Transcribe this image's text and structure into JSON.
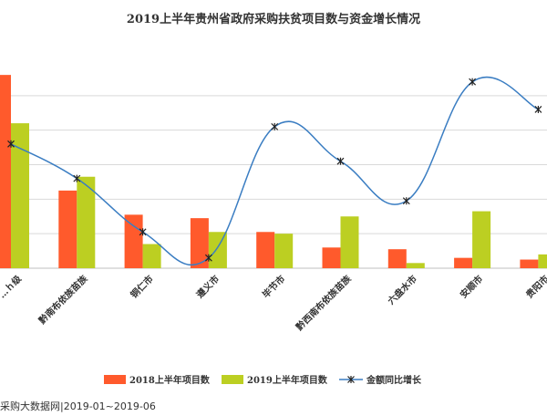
{
  "chart_data": {
    "type": "bar",
    "title": "2019上半年贵州省政府采购扶贫项目数与资金增长情况",
    "categories": [
      "贵阳市本级",
      "黔南布依族苗族",
      "铜仁市",
      "遵义市",
      "毕节市",
      "黔西南布依族苗族",
      "六盘水市",
      "安顺市",
      "贵阳市"
    ],
    "x_tick_labels": [
      "…ｈ级",
      "黔南布依族苗族",
      "铜仁市",
      "遵义市",
      "毕节市",
      "黔西南布依族苗族",
      "六盘水市",
      "安顺市",
      "贵阳市"
    ],
    "series": [
      {
        "name": "2018上半年项目数",
        "type": "bar",
        "color": "#FF5A2C",
        "values": [
          56,
          22.5,
          15.5,
          14.5,
          10.5,
          6,
          5.5,
          3,
          2.5
        ]
      },
      {
        "name": "2019上半年项目数",
        "type": "bar",
        "color": "#BCCF22",
        "values": [
          42,
          26.5,
          7,
          10.5,
          10,
          15,
          1.5,
          16.5,
          4
        ]
      },
      {
        "name": "金额同比增长",
        "type": "line",
        "color": "#3A7DC2",
        "marker": "x",
        "values": [
          36,
          26,
          10.5,
          3,
          41,
          31,
          19.5,
          54,
          46
        ]
      }
    ],
    "ylim": [
      0,
      60
    ],
    "grid": true,
    "legend_position": "bottom"
  },
  "source_text": "采购大数据网|2019-01~2019-06"
}
